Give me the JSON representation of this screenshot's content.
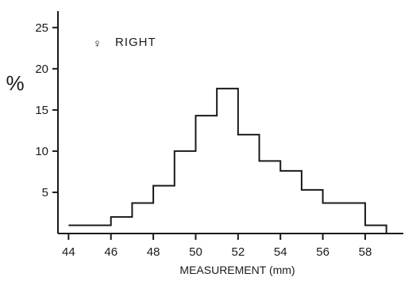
{
  "chart_data": {
    "type": "histogram",
    "legend": {
      "symbol": "♀",
      "label": "RIGHT",
      "placement": "top-left"
    },
    "xlabel": "MEASUREMENT (mm)",
    "ylabel": "%",
    "xlim": [
      43.5,
      59.8
    ],
    "ylim": [
      0,
      27
    ],
    "xticks": [
      44,
      46,
      48,
      50,
      52,
      54,
      56,
      58
    ],
    "yticks": [
      5,
      10,
      15,
      20,
      25
    ],
    "grid": false,
    "bins": [
      {
        "from": 44,
        "to": 46,
        "value": 1
      },
      {
        "from": 46,
        "to": 47,
        "value": 2
      },
      {
        "from": 47,
        "to": 48,
        "value": 3.7
      },
      {
        "from": 48,
        "to": 49,
        "value": 5.8
      },
      {
        "from": 49,
        "to": 50,
        "value": 10
      },
      {
        "from": 50,
        "to": 51,
        "value": 14.3
      },
      {
        "from": 51,
        "to": 52,
        "value": 17.6
      },
      {
        "from": 52,
        "to": 53,
        "value": 12
      },
      {
        "from": 53,
        "to": 54,
        "value": 8.8
      },
      {
        "from": 54,
        "to": 55,
        "value": 7.6
      },
      {
        "from": 55,
        "to": 56,
        "value": 5.3
      },
      {
        "from": 56,
        "to": 58,
        "value": 3.7
      },
      {
        "from": 58,
        "to": 59,
        "value": 1
      }
    ],
    "colors": {
      "line": "#1a1a1a",
      "background": "#ffffff"
    }
  }
}
